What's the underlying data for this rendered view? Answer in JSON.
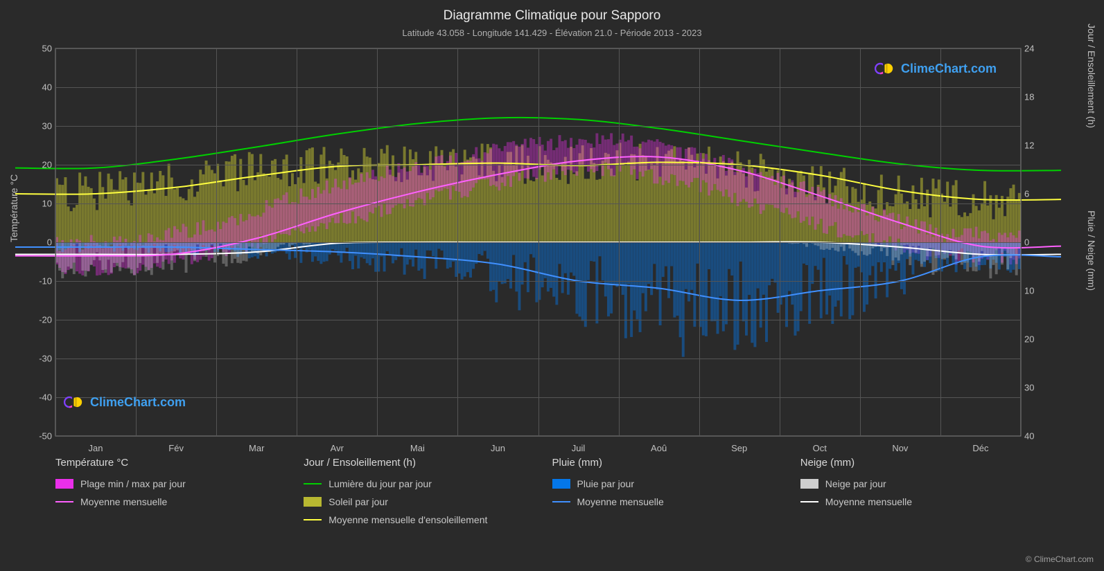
{
  "title": "Diagramme Climatique pour Sapporo",
  "subtitle": "Latitude 43.058 - Longitude 141.429 - Élévation 21.0 - Période 2013 - 2023",
  "copyright": "© ClimeChart.com",
  "brand": "ClimeChart.com",
  "brand_color": "#3fa0f0",
  "chart": {
    "background": "#2a2a2a",
    "grid_color": "#555555",
    "axis_text_color": "#c0c0c0",
    "title_fontsize": 19,
    "subtitle_fontsize": 13,
    "plot_bg": "#2a2a2a",
    "months": [
      "Jan",
      "Fév",
      "Mar",
      "Avr",
      "Mai",
      "Jun",
      "Juil",
      "Aoû",
      "Sep",
      "Oct",
      "Nov",
      "Déc"
    ],
    "left_axis": {
      "label": "Température °C",
      "min": -50,
      "max": 50,
      "step": 10,
      "ticks": [
        50,
        40,
        30,
        20,
        10,
        0,
        -10,
        -20,
        -30,
        -40,
        -50
      ]
    },
    "right_axis_top": {
      "label": "Jour / Ensoleillement (h)",
      "min": 0,
      "max": 24,
      "step": 6,
      "ticks": [
        24,
        18,
        12,
        6,
        0
      ]
    },
    "right_axis_bottom": {
      "label": "Pluie / Neige (mm)",
      "min": 0,
      "max": 40,
      "step": 10,
      "ticks": [
        0,
        10,
        20,
        30,
        40
      ]
    },
    "styling": {
      "temp_range_color": "#ff30ff",
      "temp_range_alpha": 0.35,
      "temp_mean_color": "#ff60ff",
      "temp_mean_width": 2,
      "daylight_color": "#00d000",
      "daylight_width": 2,
      "sunshine_bar_color": "#c8c832",
      "sunshine_bar_alpha": 0.5,
      "sunshine_mean_color": "#ffff40",
      "sunshine_mean_width": 2,
      "rain_bar_color": "#0080ff",
      "rain_bar_alpha": 0.4,
      "rain_mean_color": "#4090ff",
      "rain_mean_width": 2,
      "snow_bar_color": "#e0e0e0",
      "snow_bar_alpha": 0.3,
      "snow_mean_color": "#ffffff",
      "snow_mean_width": 2
    },
    "series": {
      "daylight_hours": [
        9.2,
        10.3,
        11.8,
        13.4,
        14.7,
        15.4,
        15.2,
        14.1,
        12.6,
        11.1,
        9.7,
        8.9
      ],
      "sunshine_mean_hours": [
        6.0,
        6.8,
        8.2,
        9.4,
        9.6,
        9.8,
        9.5,
        9.9,
        9.6,
        8.3,
        6.4,
        5.3
      ],
      "temp_mean_c": [
        -3.5,
        -3.0,
        1.0,
        7.5,
        13.0,
        17.5,
        21.0,
        22.0,
        18.5,
        12.0,
        5.0,
        -1.0
      ],
      "temp_min_c": [
        -7.0,
        -6.5,
        -3.0,
        3.0,
        8.0,
        13.0,
        17.5,
        19.0,
        14.5,
        7.5,
        1.5,
        -4.0
      ],
      "temp_max_c": [
        -0.5,
        0.5,
        4.5,
        12.0,
        17.5,
        22.0,
        25.5,
        26.5,
        22.5,
        16.0,
        8.5,
        2.0
      ],
      "rain_mean_mm": [
        1.0,
        1.0,
        1.5,
        2.0,
        3.0,
        4.5,
        8.0,
        9.5,
        12.0,
        10.0,
        8.0,
        3.0
      ],
      "snow_mean_mm": [
        2.5,
        2.5,
        2.0,
        0.2,
        0.0,
        0.0,
        0.0,
        0.0,
        0.0,
        0.0,
        1.0,
        2.5
      ]
    }
  },
  "legend": {
    "temp": {
      "header": "Température °C",
      "items": [
        {
          "kind": "swatch",
          "color": "#ff30ff",
          "alpha": 0.9,
          "label": "Plage min / max par jour"
        },
        {
          "kind": "line",
          "color": "#ff60ff",
          "label": "Moyenne mensuelle"
        }
      ]
    },
    "sun": {
      "header": "Jour / Ensoleillement (h)",
      "items": [
        {
          "kind": "line",
          "color": "#00d000",
          "label": "Lumière du jour par jour"
        },
        {
          "kind": "swatch",
          "color": "#c8c832",
          "alpha": 0.9,
          "label": "Soleil par jour"
        },
        {
          "kind": "line",
          "color": "#ffff40",
          "label": "Moyenne mensuelle d'ensoleillement"
        }
      ]
    },
    "rain": {
      "header": "Pluie (mm)",
      "items": [
        {
          "kind": "swatch",
          "color": "#0080ff",
          "alpha": 0.9,
          "label": "Pluie par jour"
        },
        {
          "kind": "line",
          "color": "#4090ff",
          "label": "Moyenne mensuelle"
        }
      ]
    },
    "snow": {
      "header": "Neige (mm)",
      "items": [
        {
          "kind": "swatch",
          "color": "#e0e0e0",
          "alpha": 0.9,
          "label": "Neige par jour"
        },
        {
          "kind": "line",
          "color": "#ffffff",
          "label": "Moyenne mensuelle"
        }
      ]
    }
  }
}
